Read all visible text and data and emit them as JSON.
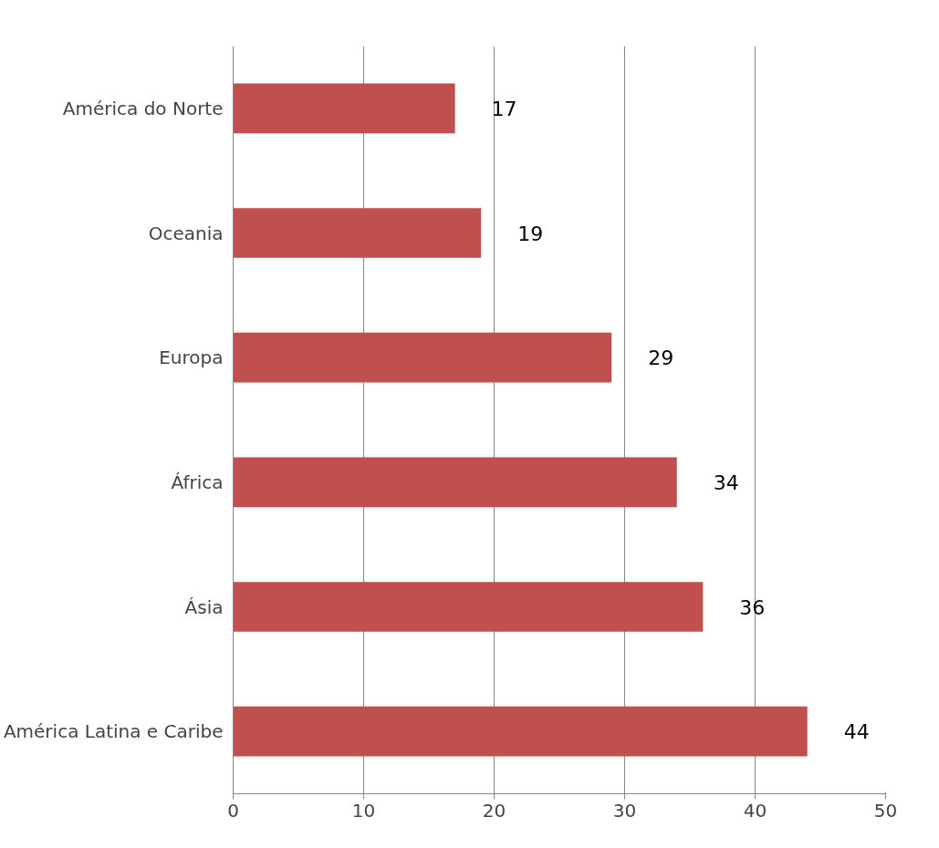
{
  "chart_data": {
    "type": "bar",
    "orientation": "horizontal",
    "categories": [
      "América do Norte",
      "Oceania",
      "Europa",
      "África",
      "Ásia",
      "América Latina e Caribe"
    ],
    "values": [
      17,
      19,
      29,
      34,
      36,
      44
    ],
    "color": "#c0504d",
    "xlim": [
      0,
      50
    ],
    "xticks": [
      0,
      10,
      20,
      30,
      40,
      50
    ],
    "grid": "x",
    "data_labels": true
  }
}
